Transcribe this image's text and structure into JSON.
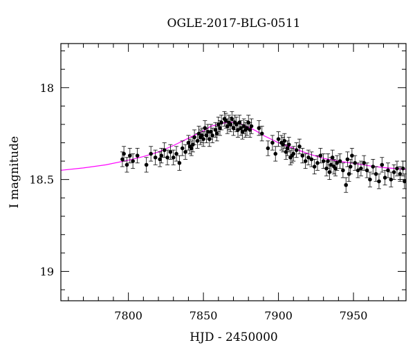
{
  "chart_data": {
    "type": "scatter",
    "title": "OGLE-2017-BLG-0511",
    "xlabel": "HJD - 2450000",
    "ylabel": "I magnitude",
    "xlim": [
      7755,
      7985
    ],
    "ylim": [
      19.16,
      17.76
    ],
    "y_inverted": true,
    "x_ticks": [
      7800,
      7850,
      7900,
      7950
    ],
    "x_tick_labels": [
      "7800",
      "7850",
      "7900",
      "7950"
    ],
    "y_ticks": [
      18,
      18.5,
      19
    ],
    "y_tick_labels": [
      "18",
      "18.5",
      "19"
    ],
    "grid": false,
    "series": [
      {
        "kind": "points",
        "color": "#000000",
        "x": [
          7796,
          7797,
          7799,
          7801,
          7803,
          7806,
          7812,
          7815,
          7818,
          7821,
          7822,
          7824,
          7826,
          7828,
          7830,
          7832,
          7834,
          7836,
          7838,
          7840,
          7841,
          7842,
          7843,
          7844,
          7846,
          7847,
          7848,
          7849,
          7850,
          7851,
          7852,
          7853,
          7854,
          7855,
          7856,
          7858,
          7859,
          7860,
          7861,
          7862,
          7864,
          7865,
          7866,
          7867,
          7868,
          7869,
          7870,
          7871,
          7872,
          7873,
          7874,
          7875,
          7876,
          7877,
          7878,
          7879,
          7880,
          7881,
          7882,
          7887,
          7889,
          7893,
          7896,
          7898,
          7900,
          7902,
          7903,
          7904,
          7905,
          7906,
          7907,
          7908,
          7909,
          7910,
          7912,
          7914,
          7916,
          7918,
          7920,
          7922,
          7924,
          7926,
          7928,
          7930,
          7932,
          7933,
          7934,
          7935,
          7936,
          7937,
          7938,
          7939,
          7941,
          7943,
          7945,
          7946,
          7947,
          7948,
          7949,
          7951,
          7953,
          7955,
          7957,
          7959,
          7961,
          7963,
          7965,
          7967,
          7969,
          7971,
          7973,
          7975,
          7977,
          7979,
          7981,
          7983,
          7984
        ],
        "y": [
          18.39,
          18.36,
          18.42,
          18.37,
          18.4,
          18.37,
          18.42,
          18.36,
          18.38,
          18.39,
          18.37,
          18.34,
          18.38,
          18.35,
          18.38,
          18.36,
          18.41,
          18.33,
          18.35,
          18.3,
          18.32,
          18.33,
          18.31,
          18.27,
          18.29,
          18.25,
          18.27,
          18.26,
          18.28,
          18.22,
          18.26,
          18.24,
          18.28,
          18.24,
          18.26,
          18.23,
          18.25,
          18.2,
          18.22,
          18.19,
          18.17,
          18.18,
          18.21,
          18.19,
          18.2,
          18.17,
          18.22,
          18.19,
          18.2,
          18.23,
          18.19,
          18.22,
          18.24,
          18.21,
          18.23,
          18.22,
          18.19,
          18.23,
          18.21,
          18.22,
          18.25,
          18.33,
          18.3,
          18.36,
          18.28,
          18.3,
          18.31,
          18.29,
          18.35,
          18.33,
          18.31,
          18.38,
          18.37,
          18.36,
          18.34,
          18.32,
          18.37,
          18.4,
          18.38,
          18.39,
          18.43,
          18.41,
          18.37,
          18.4,
          18.44,
          18.4,
          18.46,
          18.42,
          18.38,
          18.43,
          18.44,
          18.41,
          18.4,
          18.45,
          18.53,
          18.39,
          18.47,
          18.43,
          18.37,
          18.41,
          18.45,
          18.44,
          18.41,
          18.45,
          18.5,
          18.43,
          18.47,
          18.51,
          18.42,
          18.49,
          18.45,
          18.5,
          18.46,
          18.44,
          18.47,
          18.44,
          18.51
        ],
        "yerr": [
          0.04,
          0.04,
          0.04,
          0.04,
          0.04,
          0.04,
          0.04,
          0.04,
          0.04,
          0.04,
          0.04,
          0.04,
          0.04,
          0.04,
          0.04,
          0.04,
          0.04,
          0.04,
          0.04,
          0.04,
          0.04,
          0.04,
          0.04,
          0.04,
          0.04,
          0.04,
          0.04,
          0.04,
          0.04,
          0.04,
          0.04,
          0.04,
          0.04,
          0.04,
          0.04,
          0.04,
          0.04,
          0.04,
          0.04,
          0.04,
          0.04,
          0.04,
          0.04,
          0.04,
          0.04,
          0.04,
          0.04,
          0.04,
          0.04,
          0.04,
          0.04,
          0.04,
          0.04,
          0.04,
          0.04,
          0.04,
          0.04,
          0.04,
          0.04,
          0.04,
          0.04,
          0.04,
          0.04,
          0.04,
          0.04,
          0.04,
          0.04,
          0.04,
          0.04,
          0.04,
          0.04,
          0.04,
          0.04,
          0.04,
          0.04,
          0.04,
          0.04,
          0.04,
          0.04,
          0.04,
          0.04,
          0.04,
          0.04,
          0.04,
          0.04,
          0.04,
          0.04,
          0.04,
          0.04,
          0.04,
          0.04,
          0.04,
          0.04,
          0.04,
          0.04,
          0.04,
          0.04,
          0.04,
          0.04,
          0.04,
          0.04,
          0.04,
          0.04,
          0.04,
          0.04,
          0.04,
          0.04,
          0.04,
          0.04,
          0.04,
          0.04,
          0.04,
          0.04,
          0.04,
          0.04,
          0.04,
          0.04
        ]
      },
      {
        "kind": "line",
        "color": "#ff00ff",
        "x": [
          7755,
          7770,
          7785,
          7800,
          7810,
          7820,
          7830,
          7840,
          7850,
          7855,
          7860,
          7865,
          7868,
          7872,
          7876,
          7880,
          7885,
          7890,
          7900,
          7910,
          7920,
          7930,
          7940,
          7950,
          7960,
          7970,
          7985
        ],
        "y": [
          18.45,
          18.437,
          18.42,
          18.395,
          18.375,
          18.35,
          18.315,
          18.275,
          18.235,
          18.21,
          18.2,
          18.19,
          18.188,
          18.19,
          18.2,
          18.215,
          18.235,
          18.26,
          18.3,
          18.33,
          18.36,
          18.385,
          18.4,
          18.412,
          18.425,
          18.435,
          18.445
        ]
      }
    ]
  }
}
